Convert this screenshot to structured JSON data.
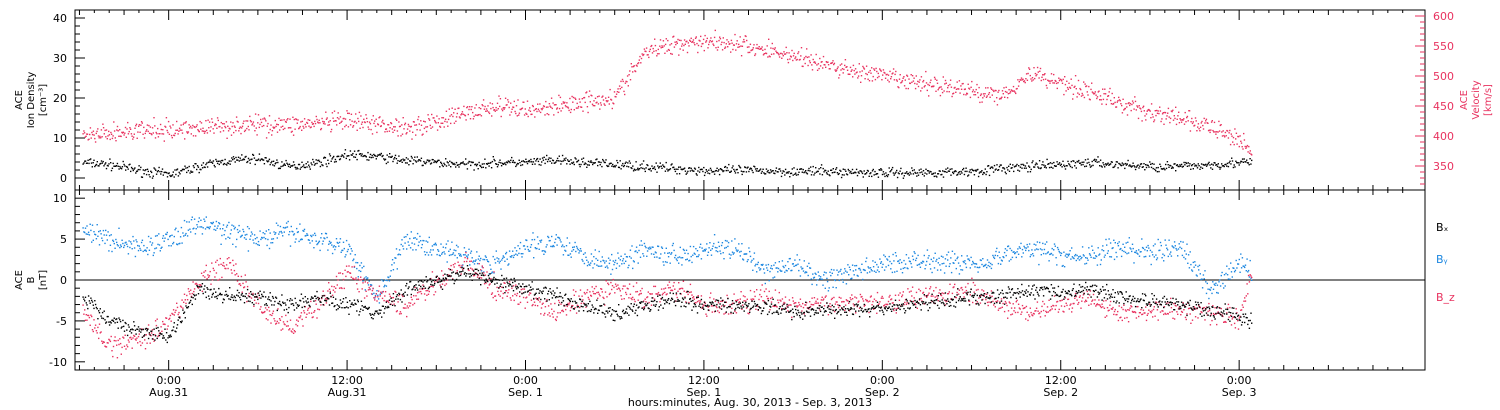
{
  "chart_data": [
    {
      "type": "scatter",
      "panel": "top",
      "ylabel_lines": [
        "ACE",
        "Ion Density",
        "[cm⁻³]"
      ],
      "ylim": [
        -3,
        42
      ],
      "yticks": [
        0,
        10,
        20,
        30,
        40
      ],
      "y2label_lines": [
        "ACE",
        "Velocity",
        "[km/s]"
      ],
      "y2lim": [
        310,
        610
      ],
      "y2ticks": [
        350,
        400,
        450,
        500,
        550,
        600
      ],
      "series": [
        {
          "axis": "left",
          "color": "#000000",
          "x": [
            -5.8,
            -4,
            -2,
            0,
            2,
            4,
            6,
            8,
            10,
            12,
            14,
            16,
            18,
            20,
            22,
            24,
            26,
            28,
            30,
            32,
            34,
            36,
            38,
            40,
            42,
            44,
            46,
            48,
            50,
            52,
            54,
            56,
            58,
            60,
            62,
            64,
            66,
            68,
            70,
            72,
            72.8
          ],
          "y": [
            4,
            3.5,
            2,
            1,
            3,
            4.5,
            5,
            3,
            4,
            6,
            5.5,
            4.5,
            4,
            3.5,
            4,
            4,
            4.5,
            4,
            3.5,
            3,
            2.5,
            2,
            2,
            2,
            1.8,
            1.8,
            1.6,
            1.5,
            1.5,
            1.6,
            1.8,
            2.5,
            3,
            3.5,
            4,
            3.5,
            3,
            3,
            3.5,
            4,
            4
          ]
        },
        {
          "axis": "right",
          "color": "#e8325f",
          "x": [
            -5.8,
            -4,
            -2,
            0,
            2,
            4,
            6,
            8,
            10,
            12,
            14,
            16,
            18,
            20,
            22,
            24,
            26,
            28,
            30,
            32,
            34,
            36,
            38,
            40,
            42,
            44,
            46,
            48,
            50,
            52,
            54,
            56,
            58,
            60,
            62,
            64,
            66,
            68,
            70,
            72,
            72.8
          ],
          "y": [
            400,
            405,
            410,
            410,
            415,
            418,
            420,
            420,
            422,
            425,
            420,
            415,
            425,
            440,
            450,
            445,
            450,
            460,
            465,
            540,
            555,
            560,
            555,
            545,
            535,
            520,
            510,
            500,
            490,
            485,
            475,
            470,
            505,
            490,
            475,
            455,
            440,
            430,
            415,
            395,
            380
          ]
        }
      ]
    },
    {
      "type": "scatter",
      "panel": "bottom",
      "ylabel_lines": [
        "ACE",
        "B",
        "[nT]"
      ],
      "ylim": [
        -11,
        11
      ],
      "yticks": [
        -10,
        -5,
        0,
        5,
        10
      ],
      "legend": [
        {
          "text": "Bₓ",
          "color": "#000000"
        },
        {
          "text": "Bᵧ",
          "color": "#1c87e0"
        },
        {
          "text": "B_z",
          "color": "#e8325f"
        }
      ],
      "series": [
        {
          "name": "Bx",
          "color": "#000000",
          "x": [
            -5.8,
            -4,
            -2,
            0,
            2,
            4,
            6,
            8,
            10,
            12,
            14,
            16,
            18,
            20,
            22,
            24,
            26,
            28,
            30,
            32,
            34,
            36,
            38,
            40,
            42,
            44,
            46,
            48,
            50,
            52,
            54,
            56,
            58,
            60,
            62,
            64,
            66,
            68,
            70,
            72,
            72.8
          ],
          "y": [
            -2,
            -5,
            -6,
            -7,
            -1,
            -2,
            -2,
            -3,
            -2,
            -3,
            -4,
            -1,
            0,
            1,
            0,
            -1,
            -2,
            -3,
            -4,
            -3,
            -2,
            -3,
            -3,
            -3,
            -4,
            -3.5,
            -3.5,
            -3.5,
            -3,
            -2.5,
            -2,
            -2,
            -1,
            -1.5,
            -1,
            -2,
            -2.5,
            -3,
            -3.5,
            -4.5,
            -5
          ]
        },
        {
          "name": "By",
          "color": "#1c87e0",
          "x": [
            -5.8,
            -4,
            -2,
            0,
            2,
            4,
            6,
            8,
            10,
            12,
            14,
            16,
            18,
            20,
            22,
            24,
            26,
            28,
            30,
            32,
            34,
            36,
            38,
            40,
            42,
            44,
            46,
            48,
            50,
            52,
            54,
            56,
            58,
            60,
            62,
            64,
            66,
            68,
            70,
            72,
            72.8
          ],
          "y": [
            6,
            5,
            4,
            5,
            7,
            6,
            5,
            6,
            5,
            4,
            -2,
            5,
            4,
            3,
            2,
            4,
            5,
            3,
            2,
            4,
            3,
            4,
            4,
            1,
            2,
            0,
            1,
            2,
            2.5,
            2.5,
            2,
            3,
            4,
            3,
            3,
            4,
            3.5,
            4,
            -1,
            2,
            1
          ]
        },
        {
          "name": "Bz",
          "color": "#e8325f",
          "x": [
            -5.8,
            -4,
            -2,
            0,
            2,
            4,
            6,
            8,
            10,
            12,
            14,
            16,
            18,
            20,
            22,
            24,
            26,
            28,
            30,
            32,
            34,
            36,
            38,
            40,
            42,
            44,
            46,
            48,
            50,
            52,
            54,
            56,
            58,
            60,
            62,
            64,
            66,
            68,
            70,
            72,
            72.8
          ],
          "y": [
            -4,
            -8,
            -7,
            -5,
            0,
            2,
            -3,
            -6,
            -3,
            1,
            -2,
            -3,
            0,
            2,
            -1,
            -2,
            -4,
            -2,
            -1,
            -2,
            -1,
            -3,
            -3,
            -2,
            -3,
            -3,
            -2.5,
            -2.5,
            -2,
            -1.5,
            -1.5,
            -3,
            -4,
            -3,
            -2,
            -4,
            -3.5,
            -3.5,
            -4,
            -4.5,
            1
          ]
        }
      ]
    }
  ],
  "x_axis": {
    "xlim": [
      -6.3,
      84.5
    ],
    "ticks": [
      {
        "x": 0,
        "time": "0:00",
        "date": "Aug.31"
      },
      {
        "x": 12,
        "time": "12:00",
        "date": "Aug.31"
      },
      {
        "x": 24,
        "time": "0:00",
        "date": "Sep. 1"
      },
      {
        "x": 36,
        "time": "12:00",
        "date": "Sep. 1"
      },
      {
        "x": 48,
        "time": "0:00",
        "date": "Sep. 2"
      },
      {
        "x": 60,
        "time": "12:00",
        "date": "Sep. 2"
      },
      {
        "x": 72,
        "time": "0:00",
        "date": "Sep. 3"
      }
    ],
    "label": "hours:minutes, Aug. 30, 2013 - Sep.  3, 2013"
  }
}
